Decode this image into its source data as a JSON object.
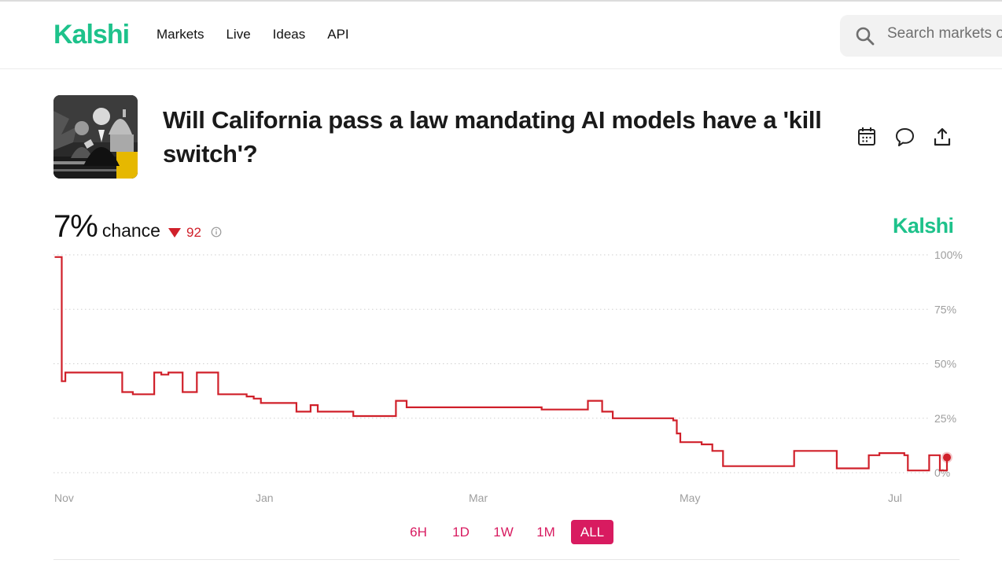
{
  "colors": {
    "brand": "#1ec28b",
    "line": "#d0202a",
    "negative": "#d0202a",
    "range_accent": "#d81b60",
    "grid": "#cfcfcf",
    "tick_text": "#9e9e9e"
  },
  "header": {
    "logo": "Kalshi",
    "nav": [
      "Markets",
      "Live",
      "Ideas",
      "API"
    ],
    "search_placeholder": "Search markets or profiles"
  },
  "market": {
    "title": "Will California pass a law mandating AI models have a 'kill switch'?",
    "actions": [
      "calendar-icon",
      "comment-icon",
      "share-icon"
    ]
  },
  "summary": {
    "probability": "7%",
    "chance_label": "chance",
    "change": "92",
    "change_direction": "down"
  },
  "watermark": "Kalshi",
  "ranges": {
    "options": [
      "6H",
      "1D",
      "1W",
      "1M",
      "ALL"
    ],
    "selected": "ALL"
  },
  "chart_data": {
    "type": "line",
    "title": "",
    "xlabel": "",
    "ylabel": "",
    "ylim": [
      0,
      100
    ],
    "y_ticks": [
      "100%",
      "75%",
      "50%",
      "25%",
      "0%"
    ],
    "x_ticks": [
      "Nov",
      "Jan",
      "Mar",
      "May",
      "Jul"
    ],
    "grid": true,
    "legend": "none",
    "series": [
      {
        "points": [
          [
            "Oct 28",
            99
          ],
          [
            "Oct 29",
            99
          ],
          [
            "Oct 30",
            42
          ],
          [
            "Oct 31",
            46
          ],
          [
            "Nov 15",
            46
          ],
          [
            "Nov 16",
            37
          ],
          [
            "Nov 19",
            36
          ],
          [
            "Nov 25",
            46
          ],
          [
            "Nov 27",
            45
          ],
          [
            "Nov 29",
            46
          ],
          [
            "Dec 3",
            37
          ],
          [
            "Dec 7",
            46
          ],
          [
            "Dec 13",
            36
          ],
          [
            "Dec 21",
            35
          ],
          [
            "Dec 23",
            34
          ],
          [
            "Dec 25",
            32
          ],
          [
            "Jan 4",
            28
          ],
          [
            "Jan 8",
            31
          ],
          [
            "Jan 10",
            28
          ],
          [
            "Jan 20",
            26
          ],
          [
            "Feb 1",
            33
          ],
          [
            "Feb 4",
            30
          ],
          [
            "Mar 14",
            29
          ],
          [
            "Mar 27",
            33
          ],
          [
            "Mar 31",
            28
          ],
          [
            "Apr 3",
            25
          ],
          [
            "Apr 20",
            24
          ],
          [
            "Apr 21",
            18
          ],
          [
            "Apr 22",
            14
          ],
          [
            "Apr 28",
            13
          ],
          [
            "May 1",
            10
          ],
          [
            "May 4",
            3
          ],
          [
            "May 24",
            10
          ],
          [
            "Jun 5",
            2
          ],
          [
            "Jun 14",
            8
          ],
          [
            "Jun 17",
            9
          ],
          [
            "Jun 24",
            8
          ],
          [
            "Jun 25",
            1
          ],
          [
            "Jul 1",
            8
          ],
          [
            "Jul 4",
            1
          ],
          [
            "Jul 5",
            1
          ],
          [
            "Jul 6",
            7
          ]
        ]
      }
    ]
  }
}
